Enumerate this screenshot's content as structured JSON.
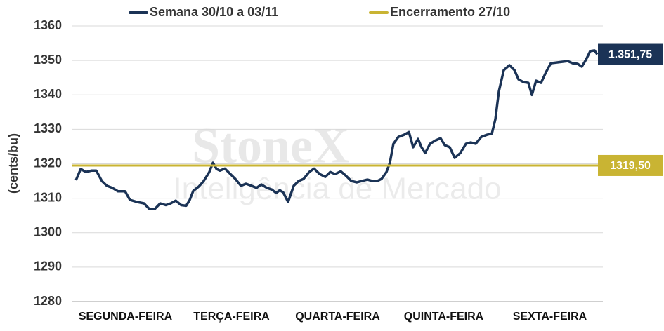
{
  "chart_data": {
    "type": "line",
    "y_label": "(cents/bu)",
    "watermark": {
      "brand": "StoneX",
      "subtitle": "Inteligência de Mercado"
    },
    "xlim": [
      0,
      5
    ],
    "xticks": [
      {
        "value": 0.5,
        "label": "SEGUNDA-FEIRA"
      },
      {
        "value": 1.5,
        "label": "TERÇA-FEIRA"
      },
      {
        "value": 2.5,
        "label": "QUARTA-FEIRA"
      },
      {
        "value": 3.5,
        "label": "QUINTA-FEIRA"
      },
      {
        "value": 4.5,
        "label": "SEXTA-FEIRA"
      }
    ],
    "ylim": [
      1280,
      1360
    ],
    "yticks": [
      1280,
      1290,
      1300,
      1310,
      1320,
      1330,
      1340,
      1350,
      1360
    ],
    "grid": true,
    "series": [
      {
        "name": "Semana 30/10 a 03/11",
        "color": "#1b3356",
        "x": [
          0.033,
          0.079,
          0.126,
          0.179,
          0.225,
          0.278,
          0.325,
          0.377,
          0.43,
          0.497,
          0.543,
          0.609,
          0.675,
          0.728,
          0.775,
          0.828,
          0.881,
          0.927,
          0.974,
          1.026,
          1.073,
          1.106,
          1.139,
          1.192,
          1.238,
          1.291,
          1.325,
          1.358,
          1.391,
          1.437,
          1.49,
          1.536,
          1.589,
          1.636,
          1.689,
          1.735,
          1.781,
          1.834,
          1.881,
          1.921,
          1.954,
          1.987,
          2.033,
          2.086,
          2.132,
          2.179,
          2.232,
          2.278,
          2.331,
          2.384,
          2.43,
          2.477,
          2.53,
          2.576,
          2.629,
          2.682,
          2.728,
          2.781,
          2.828,
          2.874,
          2.914,
          2.96,
          2.993,
          3.026,
          3.073,
          3.126,
          3.172,
          3.212,
          3.258,
          3.291,
          3.325,
          3.371,
          3.424,
          3.47,
          3.51,
          3.556,
          3.603,
          3.656,
          3.709,
          3.755,
          3.801,
          3.854,
          3.907,
          3.954,
          3.987,
          4.02,
          4.066,
          4.119,
          4.166,
          4.205,
          4.252,
          4.298,
          4.331,
          4.371,
          4.417,
          4.464,
          4.51,
          4.563,
          4.616,
          4.669,
          4.715,
          4.762,
          4.801,
          4.841,
          4.881,
          4.921,
          4.947
        ],
        "values": [
          1315.2,
          1318.5,
          1317.6,
          1318,
          1318,
          1315,
          1313.6,
          1313,
          1312,
          1312,
          1309.5,
          1308.9,
          1308.5,
          1306.8,
          1306.8,
          1308.5,
          1308,
          1308.5,
          1309.3,
          1308,
          1307.8,
          1309.5,
          1312.1,
          1313.4,
          1315,
          1317.6,
          1320.3,
          1318.5,
          1318,
          1318.6,
          1317,
          1315.6,
          1313.6,
          1314.2,
          1313.6,
          1313,
          1314,
          1313,
          1312.5,
          1311.5,
          1312.3,
          1311.7,
          1308.9,
          1313.6,
          1315,
          1315.6,
          1317.6,
          1318.6,
          1317,
          1316.2,
          1317.6,
          1317,
          1317.8,
          1316.6,
          1315,
          1314.6,
          1315,
          1315.4,
          1315,
          1315,
          1315.6,
          1317.6,
          1320.3,
          1325.8,
          1327.8,
          1328.4,
          1329.2,
          1324.8,
          1327.2,
          1324.8,
          1323.1,
          1325.8,
          1326.8,
          1327.4,
          1325.4,
          1324.8,
          1321.7,
          1323.1,
          1325.8,
          1326.2,
          1325.8,
          1327.8,
          1328.4,
          1328.8,
          1332.9,
          1341,
          1347.2,
          1348.6,
          1347.2,
          1344.5,
          1343.7,
          1343.5,
          1340,
          1344.1,
          1343.5,
          1346.6,
          1349.2,
          1349.4,
          1349.6,
          1349.8,
          1349.2,
          1349,
          1348.2,
          1350.2,
          1352.7,
          1352.9,
          1351.75
        ],
        "value_labels": [
          null,
          null,
          null,
          null,
          null,
          null,
          null,
          null,
          null,
          null,
          null,
          null,
          null,
          null,
          null,
          null,
          null,
          null,
          null,
          null,
          null,
          null,
          null,
          null,
          null,
          null,
          null,
          null,
          null,
          null,
          null,
          null,
          null,
          null,
          null,
          null,
          null,
          null,
          null,
          null,
          null,
          null,
          null,
          null,
          null,
          null,
          null,
          null,
          null,
          null,
          null,
          null,
          null,
          null,
          null,
          null,
          null,
          null,
          null,
          null,
          null,
          null,
          null,
          null,
          null,
          null,
          null,
          null,
          null,
          null,
          null,
          null,
          null,
          null,
          null,
          null,
          null,
          null,
          null,
          null,
          null,
          null,
          null,
          null,
          null,
          null,
          null,
          null,
          null,
          null,
          null,
          null,
          null,
          null,
          null,
          null,
          null,
          null,
          null,
          null,
          null,
          null,
          null,
          null,
          null,
          null,
          "1.351,75"
        ]
      },
      {
        "name": "Encerramento 27/10",
        "color": "#c9b433",
        "x": [
          0,
          5
        ],
        "values": [
          1319.5,
          1319.5
        ],
        "value_labels": [
          null,
          "1319,50"
        ]
      }
    ]
  }
}
